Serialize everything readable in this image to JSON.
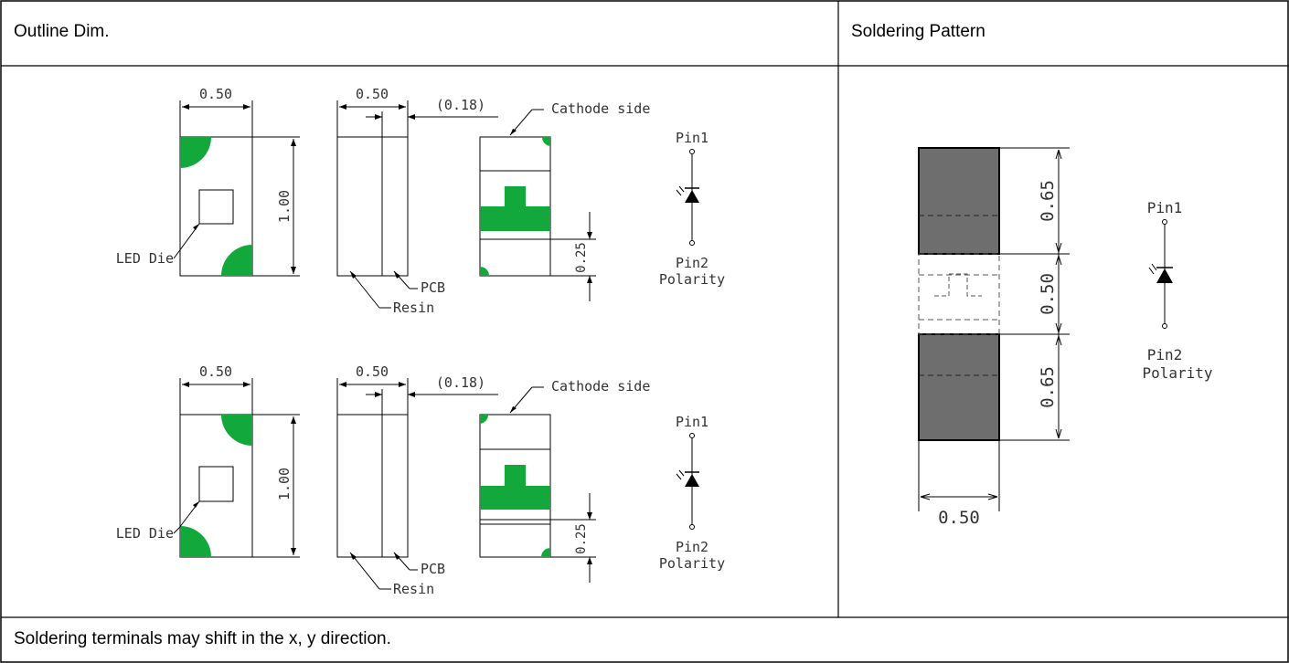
{
  "headers": {
    "outline": "Outline Dim.",
    "soldering": "Soldering Pattern"
  },
  "footer_note": "Soldering terminals may shift in the x, y direction.",
  "outline": {
    "top": {
      "width_dim": "0.50",
      "side_width_dim": "0.50",
      "offset_dim": "(0.18)",
      "cathode_label": "Cathode side",
      "height_dim": "1.00",
      "die_label": "LED Die",
      "resin_label": "Resin",
      "pcb_label": "PCB",
      "mark_dim": "0.25",
      "pin1_label": "Pin1",
      "pin2_label": "Pin2",
      "polarity_label": "Polarity"
    },
    "bottom": {
      "width_dim": "0.50",
      "side_width_dim": "0.50",
      "offset_dim": "(0.18)",
      "cathode_label": "Cathode side",
      "height_dim": "1.00",
      "die_label": "LED Die",
      "resin_label": "Resin",
      "pcb_label": "PCB",
      "mark_dim": "0.25",
      "pin1_label": "Pin1",
      "pin2_label": "Pin2",
      "polarity_label": "Polarity"
    }
  },
  "pattern": {
    "pad_top_dim": "0.65",
    "gap_dim": "0.50",
    "pad_bottom_dim": "0.65",
    "width_dim": "0.50",
    "pin1_label": "Pin1",
    "pin2_label": "Pin2",
    "polarity_label": "Polarity"
  },
  "colors": {
    "pad_fill": "#6e6e6e",
    "marking_green": "#12a83c",
    "border": "#000000"
  }
}
